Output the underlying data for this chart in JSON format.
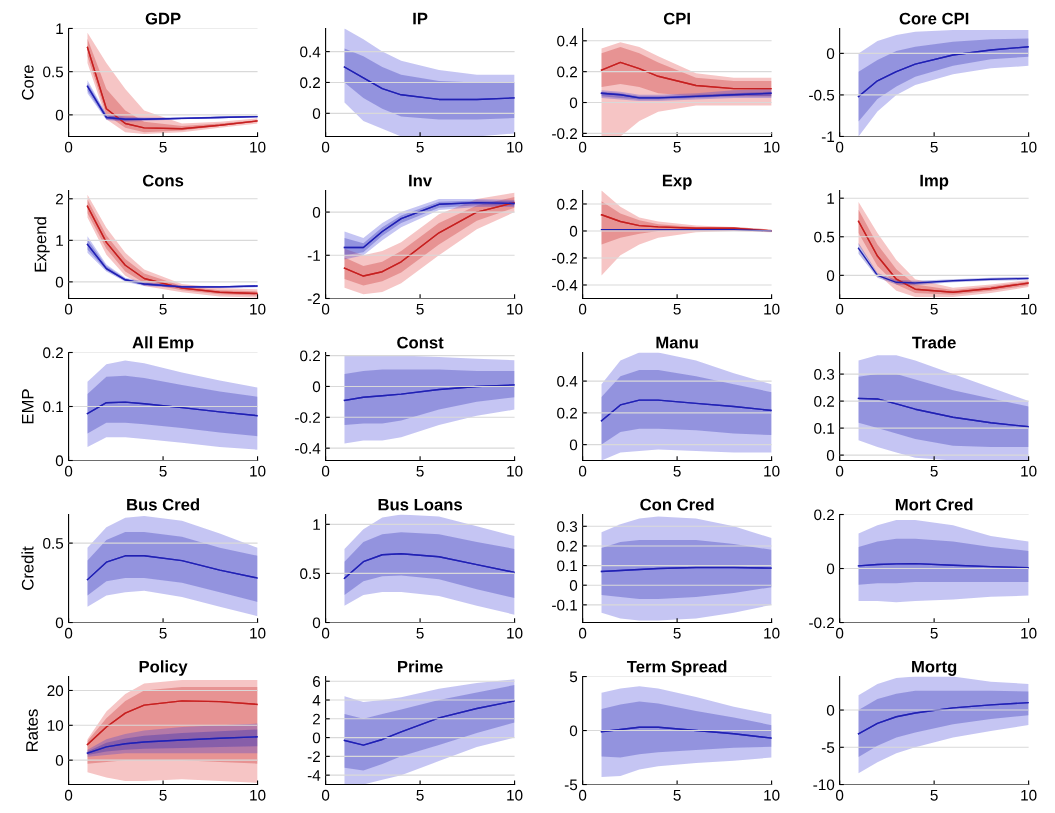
{
  "chart_data": [
    {
      "type": "line",
      "title": "GDP",
      "ylabel": "Core",
      "x": [
        1,
        2,
        3,
        4,
        6,
        8,
        10
      ],
      "xlim": [
        0,
        10
      ],
      "xticks": [
        0,
        5,
        10
      ],
      "ylim": [
        -0.25,
        1
      ],
      "yticks": [
        0,
        0.5,
        1
      ],
      "grid": "y",
      "series": [
        {
          "color": "#e04040",
          "values": [
            0.78,
            0.07,
            -0.1,
            -0.15,
            -0.16,
            -0.12,
            -0.07
          ],
          "lower": [
            0.6,
            -0.05,
            -0.2,
            -0.22,
            -0.2,
            -0.15,
            -0.1
          ],
          "upper": [
            0.95,
            0.6,
            0.3,
            0.05,
            -0.1,
            -0.08,
            -0.04
          ]
        },
        {
          "color": "#c42020",
          "values": [
            0.78,
            0.07,
            -0.1,
            -0.15,
            -0.16,
            -0.12,
            -0.07
          ],
          "lower": [
            0.68,
            0,
            -0.15,
            -0.2,
            -0.18,
            -0.13,
            -0.08
          ],
          "upper": [
            0.88,
            0.3,
            0.05,
            -0.08,
            -0.13,
            -0.1,
            -0.06
          ]
        },
        {
          "color": "#4040d8",
          "values": [
            0.33,
            -0.03,
            -0.05,
            -0.05,
            -0.04,
            -0.03,
            -0.02
          ],
          "lower": [
            0.25,
            -0.06,
            -0.08,
            -0.07,
            -0.05,
            -0.04,
            -0.03
          ],
          "upper": [
            0.4,
            0.01,
            -0.02,
            -0.03,
            -0.03,
            -0.02,
            -0.01
          ]
        },
        {
          "color": "#2020b0",
          "values": [
            0.33,
            -0.03,
            -0.05,
            -0.05,
            -0.04,
            -0.03,
            -0.02
          ],
          "lower": [
            0.28,
            -0.05,
            -0.07,
            -0.06,
            -0.05,
            -0.03,
            -0.02
          ],
          "upper": [
            0.37,
            0,
            -0.04,
            -0.04,
            -0.03,
            -0.02,
            -0.01
          ]
        }
      ]
    },
    {
      "type": "line",
      "title": "IP",
      "x": [
        1,
        2,
        3,
        4,
        6,
        8,
        10
      ],
      "xlim": [
        0,
        10
      ],
      "xticks": [
        0,
        5,
        10
      ],
      "ylim": [
        -0.15,
        0.55
      ],
      "yticks": [
        0,
        0.2,
        0.4
      ],
      "grid": "y",
      "series": [
        {
          "color": "#4040d8",
          "values": [
            0.3,
            0.23,
            0.16,
            0.12,
            0.09,
            0.09,
            0.1
          ],
          "lower": [
            0.07,
            -0.05,
            -0.1,
            -0.15,
            -0.15,
            -0.15,
            -0.13
          ],
          "upper": [
            0.55,
            0.48,
            0.4,
            0.34,
            0.28,
            0.25,
            0.25
          ]
        },
        {
          "color": "#2020b0",
          "values": [
            0.3,
            0.23,
            0.16,
            0.12,
            0.09,
            0.09,
            0.1
          ],
          "lower": [
            0.2,
            0.1,
            0.03,
            -0.02,
            -0.04,
            -0.04,
            -0.03
          ],
          "upper": [
            0.42,
            0.37,
            0.3,
            0.25,
            0.21,
            0.2,
            0.2
          ]
        }
      ]
    },
    {
      "type": "line",
      "title": "CPI",
      "x": [
        1,
        2,
        3,
        4,
        6,
        8,
        10
      ],
      "xlim": [
        0,
        10
      ],
      "xticks": [
        0,
        5,
        10
      ],
      "ylim": [
        -0.22,
        0.48
      ],
      "yticks": [
        -0.2,
        0,
        0.2,
        0.4
      ],
      "grid": "y",
      "series": [
        {
          "color": "#e04040",
          "values": [
            0.21,
            0.26,
            0.22,
            0.17,
            0.11,
            0.09,
            0.09
          ],
          "lower": [
            -0.22,
            -0.22,
            -0.12,
            -0.06,
            -0.02,
            -0.02,
            -0.02
          ],
          "upper": [
            0.35,
            0.39,
            0.36,
            0.3,
            0.19,
            0.16,
            0.16
          ]
        },
        {
          "color": "#c42020",
          "values": [
            0.21,
            0.26,
            0.22,
            0.17,
            0.11,
            0.09,
            0.09
          ],
          "lower": [
            0.1,
            0.12,
            0.1,
            0.06,
            0.04,
            0.04,
            0.04
          ],
          "upper": [
            0.32,
            0.36,
            0.32,
            0.26,
            0.16,
            0.14,
            0.14
          ]
        },
        {
          "color": "#4040d8",
          "values": [
            0.06,
            0.05,
            0.03,
            0.03,
            0.04,
            0.05,
            0.06
          ],
          "lower": [
            0.03,
            0.02,
            0.01,
            0.01,
            0.02,
            0.03,
            0.03
          ],
          "upper": [
            0.08,
            0.07,
            0.05,
            0.05,
            0.06,
            0.08,
            0.09
          ]
        },
        {
          "color": "#2020b0",
          "values": [
            0.06,
            0.05,
            0.03,
            0.03,
            0.04,
            0.05,
            0.06
          ],
          "lower": [
            0.04,
            0.03,
            0.02,
            0.02,
            0.03,
            0.04,
            0.04
          ],
          "upper": [
            0.07,
            0.06,
            0.04,
            0.04,
            0.05,
            0.06,
            0.07
          ]
        }
      ]
    },
    {
      "type": "line",
      "title": "Core CPI",
      "x": [
        1,
        2,
        3,
        4,
        6,
        8,
        10
      ],
      "xlim": [
        0,
        10
      ],
      "xticks": [
        0,
        5,
        10
      ],
      "ylim": [
        -1,
        0.3
      ],
      "yticks": [
        -1,
        -0.5,
        0
      ],
      "grid": "y",
      "series": [
        {
          "color": "#4040d8",
          "values": [
            -0.52,
            -0.33,
            -0.22,
            -0.13,
            -0.02,
            0.04,
            0.08
          ],
          "lower": [
            -1,
            -0.7,
            -0.5,
            -0.38,
            -0.25,
            -0.18,
            -0.15
          ],
          "upper": [
            0,
            0.15,
            0.22,
            0.26,
            0.28,
            0.28,
            0.28
          ]
        },
        {
          "color": "#2020b0",
          "values": [
            -0.52,
            -0.33,
            -0.22,
            -0.13,
            -0.02,
            0.04,
            0.08
          ],
          "lower": [
            -0.82,
            -0.55,
            -0.4,
            -0.28,
            -0.15,
            -0.07,
            -0.04
          ],
          "upper": [
            -0.22,
            -0.08,
            0.03,
            0.08,
            0.14,
            0.17,
            0.18
          ]
        }
      ]
    },
    {
      "type": "line",
      "title": "Cons",
      "ylabel": "Expend",
      "x": [
        1,
        2,
        3,
        4,
        6,
        8,
        10
      ],
      "xlim": [
        0,
        10
      ],
      "xticks": [
        0,
        5,
        10
      ],
      "ylim": [
        -0.4,
        2.2
      ],
      "yticks": [
        0,
        1,
        2
      ],
      "grid": "y",
      "series": [
        {
          "color": "#e04040",
          "values": [
            1.82,
            0.95,
            0.4,
            0.08,
            -0.15,
            -0.25,
            -0.28
          ],
          "lower": [
            1.55,
            0.65,
            0.15,
            -0.1,
            -0.25,
            -0.35,
            -0.38
          ],
          "upper": [
            2.1,
            1.3,
            0.7,
            0.3,
            -0.05,
            -0.15,
            -0.18
          ]
        },
        {
          "color": "#c42020",
          "values": [
            1.82,
            0.95,
            0.4,
            0.08,
            -0.15,
            -0.25,
            -0.28
          ],
          "lower": [
            1.65,
            0.8,
            0.25,
            -0.03,
            -0.2,
            -0.3,
            -0.33
          ],
          "upper": [
            1.98,
            1.12,
            0.55,
            0.2,
            -0.1,
            -0.2,
            -0.23
          ]
        },
        {
          "color": "#4040d8",
          "values": [
            0.9,
            0.32,
            0.05,
            -0.05,
            -0.12,
            -0.12,
            -0.1
          ],
          "lower": [
            0.7,
            0.25,
            0,
            -0.1,
            -0.15,
            -0.15,
            -0.13
          ],
          "upper": [
            1.1,
            0.42,
            0.1,
            0,
            -0.09,
            -0.1,
            -0.08
          ]
        },
        {
          "color": "#2020b0",
          "values": [
            0.9,
            0.32,
            0.05,
            -0.05,
            -0.12,
            -0.12,
            -0.1
          ],
          "lower": [
            0.78,
            0.28,
            0.02,
            -0.08,
            -0.14,
            -0.14,
            -0.12
          ],
          "upper": [
            1.02,
            0.38,
            0.08,
            -0.03,
            -0.1,
            -0.11,
            -0.09
          ]
        }
      ]
    },
    {
      "type": "line",
      "title": "Inv",
      "x": [
        1,
        2,
        3,
        4,
        6,
        8,
        10
      ],
      "xlim": [
        0,
        10
      ],
      "xticks": [
        0,
        5,
        10
      ],
      "ylim": [
        -2,
        0.5
      ],
      "yticks": [
        -2,
        -1,
        0
      ],
      "grid": "y",
      "series": [
        {
          "color": "#e04040",
          "values": [
            -1.3,
            -1.48,
            -1.38,
            -1.15,
            -0.48,
            0,
            0.22
          ],
          "lower": [
            -1.75,
            -1.9,
            -1.85,
            -1.65,
            -1,
            -0.4,
            0
          ],
          "upper": [
            -0.85,
            -1,
            -0.9,
            -0.7,
            -0.05,
            0.3,
            0.45
          ]
        },
        {
          "color": "#c42020",
          "values": [
            -1.3,
            -1.48,
            -1.38,
            -1.15,
            -0.48,
            0,
            0.22
          ],
          "lower": [
            -1.55,
            -1.7,
            -1.6,
            -1.4,
            -0.75,
            -0.2,
            0.1
          ],
          "upper": [
            -1.05,
            -1.25,
            -1.15,
            -0.9,
            -0.25,
            0.15,
            0.35
          ]
        },
        {
          "color": "#4040d8",
          "values": [
            -0.82,
            -0.82,
            -0.45,
            -0.15,
            0.18,
            0.22,
            0.2
          ],
          "lower": [
            -1.1,
            -1,
            -0.65,
            -0.35,
            0.05,
            0.12,
            0.12
          ],
          "upper": [
            -0.45,
            -0.6,
            -0.25,
            0,
            0.3,
            0.3,
            0.28
          ]
        },
        {
          "color": "#2020b0",
          "values": [
            -0.82,
            -0.82,
            -0.45,
            -0.15,
            0.18,
            0.22,
            0.2
          ],
          "lower": [
            -1,
            -0.93,
            -0.55,
            -0.25,
            0.1,
            0.16,
            0.15
          ],
          "upper": [
            -0.6,
            -0.72,
            -0.35,
            -0.08,
            0.24,
            0.27,
            0.25
          ]
        }
      ]
    },
    {
      "type": "line",
      "title": "Exp",
      "x": [
        1,
        2,
        3,
        4,
        6,
        8,
        10
      ],
      "xlim": [
        0,
        10
      ],
      "xticks": [
        0,
        5,
        10
      ],
      "ylim": [
        -0.5,
        0.3
      ],
      "yticks": [
        -0.4,
        -0.2,
        0,
        0.2
      ],
      "grid": "y",
      "series": [
        {
          "color": "#e04040",
          "values": [
            0.12,
            0.07,
            0.04,
            0.03,
            0.02,
            0.02,
            0
          ],
          "lower": [
            -0.33,
            -0.18,
            -0.1,
            -0.05,
            -0.01,
            0,
            -0.01
          ],
          "upper": [
            0.3,
            0.18,
            0.1,
            0.07,
            0.04,
            0.03,
            0.01
          ]
        },
        {
          "color": "#c42020",
          "values": [
            0.12,
            0.07,
            0.04,
            0.03,
            0.02,
            0.02,
            0
          ],
          "lower": [
            -0.1,
            -0.05,
            -0.02,
            0,
            0.01,
            0.01,
            0
          ],
          "upper": [
            0.22,
            0.13,
            0.08,
            0.05,
            0.03,
            0.03,
            0.01
          ]
        },
        {
          "color": "#2020b0",
          "values": [
            0.01,
            0.01,
            0.01,
            0.01,
            0.01,
            0.01,
            0
          ]
        }
      ]
    },
    {
      "type": "line",
      "title": "Imp",
      "x": [
        1,
        2,
        3,
        4,
        6,
        8,
        10
      ],
      "xlim": [
        0,
        10
      ],
      "xticks": [
        0,
        5,
        10
      ],
      "ylim": [
        -0.3,
        1.1
      ],
      "yticks": [
        0,
        0.5,
        1
      ],
      "grid": "y",
      "series": [
        {
          "color": "#e04040",
          "values": [
            0.7,
            0.25,
            -0.05,
            -0.18,
            -0.22,
            -0.17,
            -0.1
          ],
          "lower": [
            0.4,
            0.02,
            -0.2,
            -0.28,
            -0.28,
            -0.23,
            -0.15
          ],
          "upper": [
            0.95,
            0.55,
            0.2,
            -0.05,
            -0.16,
            -0.12,
            -0.06
          ]
        },
        {
          "color": "#c42020",
          "values": [
            0.7,
            0.25,
            -0.05,
            -0.18,
            -0.22,
            -0.17,
            -0.1
          ],
          "lower": [
            0.55,
            0.12,
            -0.12,
            -0.23,
            -0.25,
            -0.2,
            -0.13
          ],
          "upper": [
            0.85,
            0.4,
            0.08,
            -0.12,
            -0.19,
            -0.14,
            -0.08
          ]
        },
        {
          "color": "#2020b0",
          "values": [
            0.35,
            0,
            -0.09,
            -0.1,
            -0.07,
            -0.05,
            -0.04
          ],
          "lower": [
            0.28,
            -0.03,
            -0.12,
            -0.13,
            -0.09,
            -0.07,
            -0.06
          ],
          "upper": [
            0.42,
            0.03,
            -0.06,
            -0.07,
            -0.05,
            -0.03,
            -0.02
          ]
        }
      ]
    },
    {
      "type": "line",
      "title": "All Emp",
      "ylabel": "EMP",
      "x": [
        1,
        2,
        3,
        4,
        6,
        8,
        10
      ],
      "xlim": [
        0,
        10
      ],
      "xticks": [
        0,
        5,
        10
      ],
      "ylim": [
        0,
        0.2
      ],
      "yticks": [
        0,
        0.1,
        0.2
      ],
      "grid": "y",
      "series": [
        {
          "color": "#4040d8",
          "values": [
            0.087,
            0.107,
            0.108,
            0.105,
            0.098,
            0.09,
            0.083
          ],
          "lower": [
            0.025,
            0.043,
            0.043,
            0.04,
            0.033,
            0.025,
            0.02
          ],
          "upper": [
            0.146,
            0.178,
            0.185,
            0.18,
            0.163,
            0.148,
            0.135
          ]
        },
        {
          "color": "#2020b0",
          "values": [
            0.087,
            0.107,
            0.108,
            0.105,
            0.098,
            0.09,
            0.083
          ],
          "lower": [
            0.05,
            0.07,
            0.07,
            0.067,
            0.06,
            0.052,
            0.045
          ],
          "upper": [
            0.123,
            0.155,
            0.157,
            0.153,
            0.14,
            0.128,
            0.118
          ]
        }
      ]
    },
    {
      "type": "line",
      "title": "Const",
      "x": [
        1,
        2,
        3,
        4,
        6,
        8,
        10
      ],
      "xlim": [
        0,
        10
      ],
      "xticks": [
        0,
        5,
        10
      ],
      "ylim": [
        -0.48,
        0.22
      ],
      "yticks": [
        -0.4,
        -0.2,
        0,
        0.2
      ],
      "grid": "y",
      "series": [
        {
          "color": "#4040d8",
          "values": [
            -0.09,
            -0.07,
            -0.06,
            -0.05,
            -0.02,
            0,
            0.01
          ],
          "lower": [
            -0.37,
            -0.35,
            -0.35,
            -0.33,
            -0.25,
            -0.19,
            -0.15
          ],
          "upper": [
            0.2,
            0.2,
            0.2,
            0.2,
            0.19,
            0.18,
            0.17
          ]
        },
        {
          "color": "#2020b0",
          "values": [
            -0.09,
            -0.07,
            -0.06,
            -0.05,
            -0.02,
            0,
            0.01
          ],
          "lower": [
            -0.25,
            -0.24,
            -0.24,
            -0.22,
            -0.15,
            -0.1,
            -0.07
          ],
          "upper": [
            0.08,
            0.1,
            0.11,
            0.11,
            0.11,
            0.1,
            0.1
          ]
        }
      ]
    },
    {
      "type": "line",
      "title": "Manu",
      "x": [
        1,
        2,
        3,
        4,
        6,
        8,
        10
      ],
      "xlim": [
        0,
        10
      ],
      "xticks": [
        0,
        5,
        10
      ],
      "ylim": [
        -0.1,
        0.58
      ],
      "yticks": [
        0,
        0.2,
        0.4
      ],
      "grid": "y",
      "series": [
        {
          "color": "#4040d8",
          "values": [
            0.15,
            0.25,
            0.28,
            0.28,
            0.26,
            0.24,
            0.215
          ],
          "lower": [
            -0.1,
            -0.05,
            -0.04,
            -0.03,
            -0.04,
            -0.05,
            -0.05
          ],
          "upper": [
            0.38,
            0.53,
            0.58,
            0.58,
            0.53,
            0.45,
            0.38
          ]
        },
        {
          "color": "#2020b0",
          "values": [
            0.15,
            0.25,
            0.28,
            0.28,
            0.26,
            0.24,
            0.215
          ],
          "lower": [
            0,
            0.08,
            0.1,
            0.1,
            0.09,
            0.07,
            0.06
          ],
          "upper": [
            0.3,
            0.43,
            0.47,
            0.47,
            0.43,
            0.38,
            0.33
          ]
        }
      ]
    },
    {
      "type": "line",
      "title": "Trade",
      "x": [
        1,
        2,
        3,
        4,
        6,
        8,
        10
      ],
      "xlim": [
        0,
        10
      ],
      "xticks": [
        0,
        5,
        10
      ],
      "ylim": [
        -0.02,
        0.38
      ],
      "yticks": [
        0,
        0.1,
        0.2,
        0.3
      ],
      "grid": "y",
      "series": [
        {
          "color": "#4040d8",
          "values": [
            0.21,
            0.208,
            0.19,
            0.17,
            0.14,
            0.12,
            0.105
          ],
          "lower": [
            0.055,
            0.03,
            0.01,
            -0.01,
            -0.02,
            -0.02,
            -0.02
          ],
          "upper": [
            0.35,
            0.37,
            0.37,
            0.35,
            0.3,
            0.25,
            0.2
          ]
        },
        {
          "color": "#2020b0",
          "values": [
            0.21,
            0.208,
            0.19,
            0.17,
            0.14,
            0.12,
            0.105
          ],
          "lower": [
            0.12,
            0.1,
            0.08,
            0.06,
            0.035,
            0.03,
            0.03
          ],
          "upper": [
            0.29,
            0.3,
            0.3,
            0.28,
            0.24,
            0.21,
            0.18
          ]
        }
      ]
    },
    {
      "type": "line",
      "title": "Bus Cred",
      "ylabel": "Credit",
      "x": [
        1,
        2,
        3,
        4,
        6,
        8,
        10
      ],
      "xlim": [
        0,
        10
      ],
      "xticks": [
        0,
        5,
        10
      ],
      "ylim": [
        0,
        0.68
      ],
      "yticks": [
        0,
        0.5
      ],
      "grid": "y",
      "series": [
        {
          "color": "#4040d8",
          "values": [
            0.27,
            0.38,
            0.42,
            0.42,
            0.39,
            0.33,
            0.28
          ],
          "lower": [
            0.1,
            0.17,
            0.19,
            0.2,
            0.16,
            0.1,
            0.04
          ],
          "upper": [
            0.47,
            0.6,
            0.66,
            0.67,
            0.64,
            0.56,
            0.47
          ]
        },
        {
          "color": "#2020b0",
          "values": [
            0.27,
            0.38,
            0.42,
            0.42,
            0.39,
            0.33,
            0.28
          ],
          "lower": [
            0.17,
            0.26,
            0.28,
            0.28,
            0.25,
            0.19,
            0.13
          ],
          "upper": [
            0.39,
            0.52,
            0.57,
            0.57,
            0.54,
            0.47,
            0.42
          ]
        }
      ]
    },
    {
      "type": "line",
      "title": "Bus Loans",
      "x": [
        1,
        2,
        3,
        4,
        6,
        8,
        10
      ],
      "xlim": [
        0,
        10
      ],
      "xticks": [
        0,
        5,
        10
      ],
      "ylim": [
        0,
        1.1
      ],
      "yticks": [
        0,
        0.5,
        1
      ],
      "grid": "y",
      "series": [
        {
          "color": "#4040d8",
          "values": [
            0.45,
            0.62,
            0.69,
            0.7,
            0.67,
            0.59,
            0.51
          ],
          "lower": [
            0.17,
            0.28,
            0.31,
            0.31,
            0.27,
            0.17,
            0.08
          ],
          "upper": [
            0.75,
            0.95,
            1.07,
            1.1,
            1.08,
            0.98,
            0.88
          ]
        },
        {
          "color": "#2020b0",
          "values": [
            0.45,
            0.62,
            0.69,
            0.7,
            0.67,
            0.59,
            0.51
          ],
          "lower": [
            0.28,
            0.42,
            0.47,
            0.48,
            0.44,
            0.34,
            0.25
          ],
          "upper": [
            0.62,
            0.82,
            0.9,
            0.92,
            0.9,
            0.82,
            0.75
          ]
        }
      ]
    },
    {
      "type": "line",
      "title": "Con Cred",
      "x": [
        1,
        2,
        3,
        4,
        6,
        8,
        10
      ],
      "xlim": [
        0,
        10
      ],
      "xticks": [
        0,
        5,
        10
      ],
      "ylim": [
        -0.19,
        0.36
      ],
      "yticks": [
        -0.1,
        0,
        0.1,
        0.2,
        0.3
      ],
      "grid": "y",
      "series": [
        {
          "color": "#4040d8",
          "values": [
            0.07,
            0.075,
            0.08,
            0.085,
            0.09,
            0.09,
            0.087
          ],
          "lower": [
            -0.14,
            -0.17,
            -0.18,
            -0.18,
            -0.17,
            -0.14,
            -0.1
          ],
          "upper": [
            0.27,
            0.31,
            0.34,
            0.35,
            0.34,
            0.3,
            0.24
          ]
        },
        {
          "color": "#2020b0",
          "values": [
            0.07,
            0.075,
            0.08,
            0.085,
            0.09,
            0.09,
            0.087
          ],
          "lower": [
            -0.05,
            -0.06,
            -0.07,
            -0.07,
            -0.06,
            -0.04,
            -0.01
          ],
          "upper": [
            0.19,
            0.22,
            0.23,
            0.23,
            0.23,
            0.21,
            0.18
          ]
        }
      ]
    },
    {
      "type": "line",
      "title": "Mort Cred",
      "x": [
        1,
        2,
        3,
        4,
        6,
        8,
        10
      ],
      "xlim": [
        0,
        10
      ],
      "xticks": [
        0,
        5,
        10
      ],
      "ylim": [
        -0.2,
        0.2
      ],
      "yticks": [
        -0.2,
        0,
        0.2
      ],
      "grid": "y",
      "series": [
        {
          "color": "#4040d8",
          "values": [
            0.01,
            0.015,
            0.017,
            0.018,
            0.012,
            0.007,
            0.003
          ],
          "lower": [
            -0.12,
            -0.12,
            -0.125,
            -0.12,
            -0.115,
            -0.105,
            -0.1
          ],
          "upper": [
            0.13,
            0.16,
            0.18,
            0.18,
            0.16,
            0.12,
            0.1
          ]
        },
        {
          "color": "#2020b0",
          "values": [
            0.01,
            0.015,
            0.017,
            0.018,
            0.012,
            0.007,
            0.003
          ],
          "lower": [
            -0.06,
            -0.055,
            -0.055,
            -0.05,
            -0.05,
            -0.05,
            -0.05
          ],
          "upper": [
            0.08,
            0.1,
            0.11,
            0.11,
            0.1,
            0.08,
            0.065
          ]
        }
      ]
    },
    {
      "type": "line",
      "title": "Policy",
      "ylabel": "Rates",
      "x": [
        1,
        2,
        3,
        4,
        6,
        8,
        10
      ],
      "xlim": [
        0,
        10
      ],
      "xticks": [
        0,
        5,
        10
      ],
      "ylim": [
        -7,
        24
      ],
      "yticks": [
        0,
        10,
        20
      ],
      "grid": "y",
      "series": [
        {
          "color": "#e04040",
          "values": [
            4.5,
            9.5,
            13.5,
            15.8,
            17,
            16.8,
            16
          ],
          "lower": [
            -3.5,
            -5,
            -6,
            -6,
            -5.5,
            -6,
            -6.5
          ],
          "upper": [
            6,
            14,
            19,
            22,
            23,
            23,
            23
          ]
        },
        {
          "color": "#c42020",
          "values": [
            4.5,
            9.5,
            13.5,
            15.8,
            17,
            16.8,
            16
          ],
          "lower": [
            -1,
            -0.5,
            0,
            0,
            0,
            -0.5,
            -1
          ],
          "upper": [
            5.5,
            12,
            17,
            20,
            21,
            21,
            21
          ]
        },
        {
          "color": "#4040d8",
          "values": [
            2,
            3.8,
            4.7,
            5.2,
            5.8,
            6.3,
            6.7
          ],
          "lower": [
            1,
            1.5,
            2,
            2,
            2,
            2,
            2
          ],
          "upper": [
            3,
            6,
            7.5,
            8.5,
            9.5,
            10,
            10.5
          ]
        },
        {
          "color": "#2020b0",
          "values": [
            2,
            3.8,
            4.7,
            5.2,
            5.8,
            6.3,
            6.7
          ],
          "lower": [
            1.5,
            2.5,
            3,
            3.3,
            3.5,
            3.8,
            4
          ],
          "upper": [
            2.5,
            5,
            6.2,
            7,
            7.8,
            8.3,
            8.8
          ]
        }
      ]
    },
    {
      "type": "line",
      "title": "Prime",
      "x": [
        1,
        2,
        3,
        4,
        6,
        8,
        10
      ],
      "xlim": [
        0,
        10
      ],
      "xticks": [
        0,
        5,
        10
      ],
      "ylim": [
        -5,
        6.5
      ],
      "yticks": [
        -4,
        -2,
        0,
        2,
        4,
        6
      ],
      "grid": "y",
      "series": [
        {
          "color": "#4040d8",
          "values": [
            -0.3,
            -0.8,
            -0.2,
            0.6,
            2.1,
            3.1,
            3.9
          ],
          "lower": [
            -5,
            -5,
            -4.5,
            -4,
            -2.5,
            -1,
            0
          ],
          "upper": [
            4.4,
            3.8,
            4,
            4.3,
            5.2,
            5.8,
            6.2
          ]
        },
        {
          "color": "#2020b0",
          "values": [
            -0.3,
            -0.8,
            -0.2,
            0.6,
            2.1,
            3.1,
            3.9
          ],
          "lower": [
            -3.2,
            -3.5,
            -2.8,
            -2,
            -0.8,
            0.5,
            1.6
          ],
          "upper": [
            2.5,
            2,
            2.5,
            3,
            4,
            4.8,
            5.6
          ]
        }
      ]
    },
    {
      "type": "line",
      "title": "Term Spread",
      "x": [
        1,
        2,
        3,
        4,
        6,
        8,
        10
      ],
      "xlim": [
        0,
        10
      ],
      "xticks": [
        0,
        5,
        10
      ],
      "ylim": [
        -5,
        5
      ],
      "yticks": [
        -5,
        0,
        5
      ],
      "grid": "y",
      "series": [
        {
          "color": "#4040d8",
          "values": [
            -0.1,
            0.1,
            0.3,
            0.3,
            0,
            -0.3,
            -0.7
          ],
          "lower": [
            -4.3,
            -4.2,
            -3.6,
            -3.3,
            -3,
            -2.8,
            -2.5
          ],
          "upper": [
            3.5,
            3.9,
            4.1,
            3.9,
            3.1,
            2.2,
            1.5
          ]
        },
        {
          "color": "#2020b0",
          "values": [
            -0.1,
            0.1,
            0.3,
            0.3,
            0,
            -0.3,
            -0.7
          ],
          "lower": [
            -2.4,
            -2.5,
            -2.2,
            -2,
            -1.8,
            -1.6,
            -1.5
          ],
          "upper": [
            2,
            2.4,
            2.7,
            2.5,
            1.8,
            1.2,
            0.5
          ]
        }
      ]
    },
    {
      "type": "line",
      "title": "Mortg",
      "x": [
        1,
        2,
        3,
        4,
        6,
        8,
        10
      ],
      "xlim": [
        0,
        10
      ],
      "xticks": [
        0,
        5,
        10
      ],
      "ylim": [
        -10,
        4.5
      ],
      "yticks": [
        -10,
        -5,
        0
      ],
      "grid": "y",
      "series": [
        {
          "color": "#4040d8",
          "values": [
            -3.2,
            -1.8,
            -0.9,
            -0.4,
            0.3,
            0.7,
            1
          ],
          "lower": [
            -8.5,
            -7,
            -5.8,
            -5,
            -3.7,
            -2.8,
            -2
          ],
          "upper": [
            2,
            3.5,
            4.3,
            4.5,
            4.5,
            3.8,
            3.5
          ]
        },
        {
          "color": "#2020b0",
          "values": [
            -3.2,
            -1.8,
            -0.9,
            -0.4,
            0.3,
            0.7,
            1
          ],
          "lower": [
            -6.3,
            -4.8,
            -3.7,
            -3,
            -1.9,
            -1.2,
            -0.7
          ],
          "upper": [
            0,
            1.5,
            2.2,
            2.6,
            2.6,
            2.6,
            2.5
          ]
        }
      ]
    }
  ]
}
